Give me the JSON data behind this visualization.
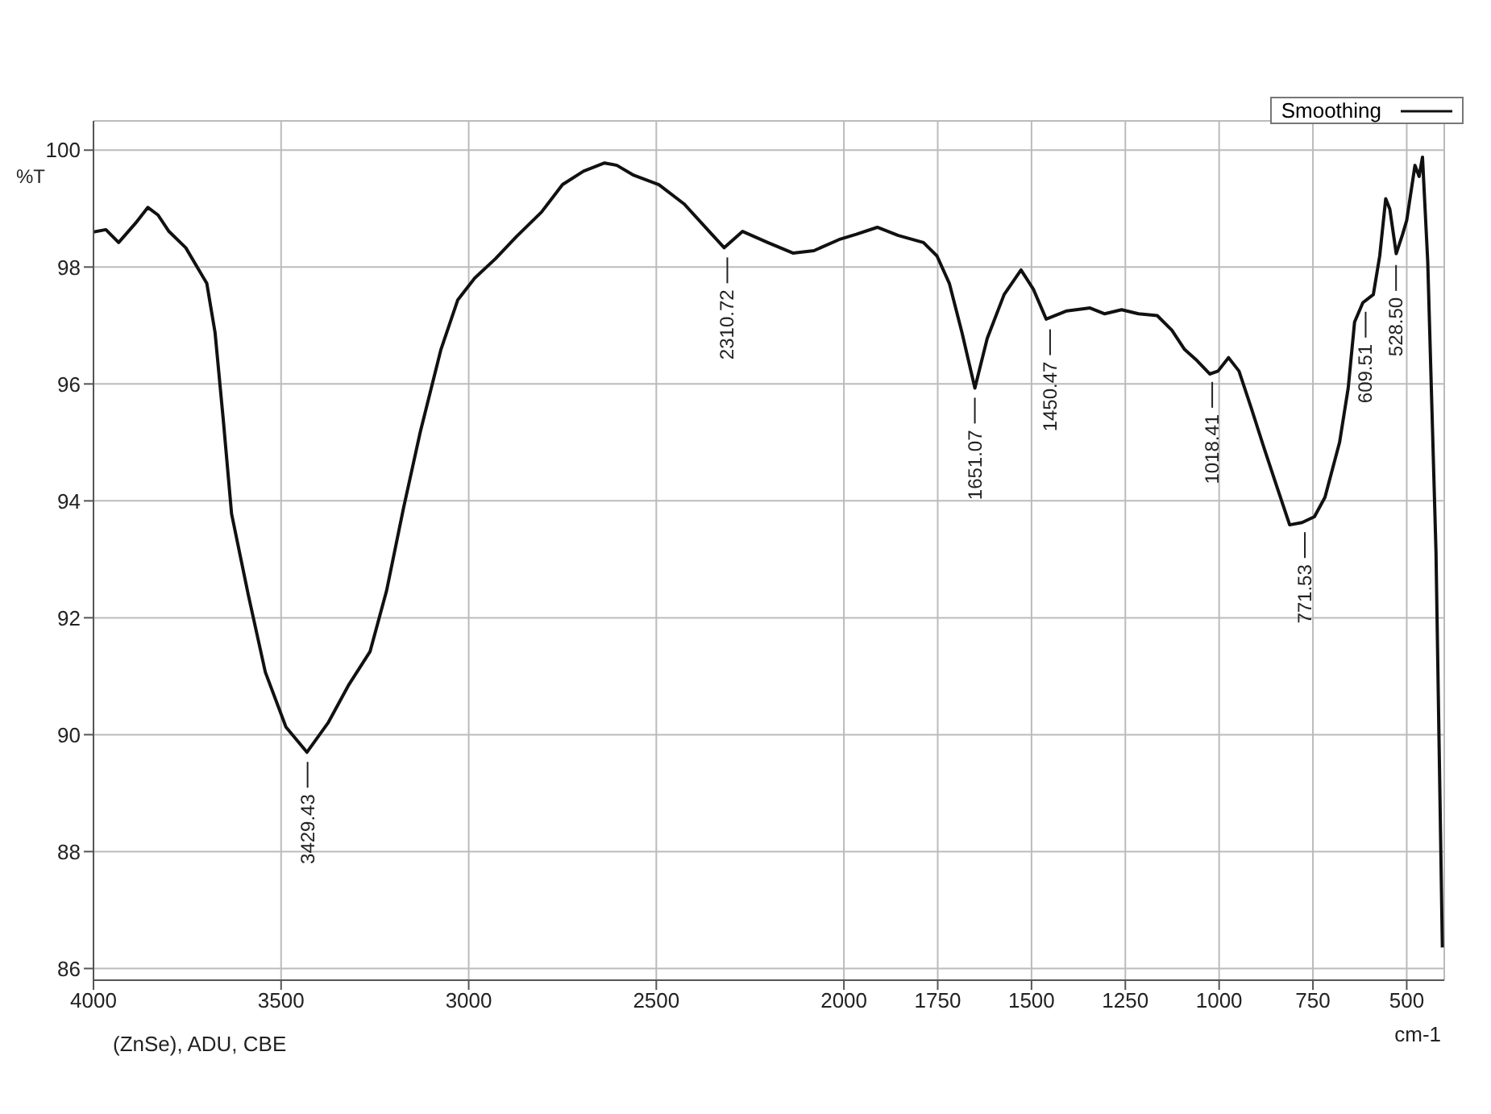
{
  "chart_data": {
    "type": "line",
    "xlabel": "cm-1",
    "ylabel": "%T",
    "series": [
      {
        "name": "Smoothing",
        "color": "#111111",
        "x": [
          4000,
          3967,
          3933,
          3888,
          3855,
          3828,
          3799,
          3754,
          3698,
          3676,
          3654,
          3632,
          3587,
          3542,
          3487,
          3431,
          3375,
          3319,
          3263,
          3219,
          3174,
          3129,
          3074,
          3029,
          2984,
          2929,
          2873,
          2806,
          2750,
          2694,
          2638,
          2605,
          2560,
          2493,
          2426,
          2359,
          2319,
          2270,
          2203,
          2136,
          2080,
          2013,
          1967,
          1911,
          1855,
          1788,
          1752,
          1719,
          1685,
          1651,
          1618,
          1573,
          1528,
          1495,
          1461,
          1406,
          1344,
          1305,
          1260,
          1215,
          1165,
          1126,
          1092,
          1059,
          1025,
          1003,
          975,
          947,
          913,
          880,
          846,
          812,
          779,
          746,
          718,
          679,
          656,
          639,
          617,
          589,
          572,
          556,
          545,
          528,
          511,
          500,
          478,
          467,
          458,
          444,
          422,
          405
        ],
        "values": [
          98.6,
          98.64,
          98.42,
          98.75,
          99.02,
          98.89,
          98.61,
          98.33,
          97.72,
          96.88,
          95.38,
          93.78,
          92.38,
          91.07,
          90.13,
          89.7,
          90.2,
          90.86,
          91.42,
          92.46,
          93.87,
          95.18,
          96.59,
          97.44,
          97.81,
          98.14,
          98.52,
          98.94,
          99.41,
          99.64,
          99.78,
          99.74,
          99.57,
          99.41,
          99.08,
          98.61,
          98.33,
          98.61,
          98.42,
          98.24,
          98.28,
          98.47,
          98.56,
          98.68,
          98.54,
          98.42,
          98.19,
          97.72,
          96.87,
          95.93,
          96.78,
          97.53,
          97.95,
          97.62,
          97.11,
          97.25,
          97.3,
          97.2,
          97.27,
          97.2,
          97.17,
          96.92,
          96.59,
          96.4,
          96.17,
          96.22,
          96.45,
          96.22,
          95.56,
          94.9,
          94.24,
          93.59,
          93.63,
          93.73,
          94.06,
          95.0,
          95.93,
          97.06,
          97.39,
          97.53,
          98.19,
          99.17,
          98.99,
          98.23,
          98.56,
          98.8,
          99.74,
          99.55,
          99.88,
          98.09,
          93.12,
          86.36
        ]
      }
    ],
    "xlim": [
      4000,
      400
    ],
    "xticks": [
      4000,
      3500,
      3000,
      2500,
      2000,
      1750,
      1500,
      1250,
      1000,
      750,
      500
    ],
    "ylim": [
      85.8,
      100.5
    ],
    "yticks": [
      86,
      88,
      90,
      92,
      94,
      96,
      98,
      100
    ],
    "grid": true,
    "legend": "top right",
    "marker": "none",
    "line_style": "solid",
    "annotations": [
      {
        "text": "3429.43",
        "x": 3429.43,
        "y": 89.7
      },
      {
        "text": "2310.72",
        "x": 2310.72,
        "y": 98.33
      },
      {
        "text": "1651.07",
        "x": 1651.07,
        "y": 95.93
      },
      {
        "text": "1450.47",
        "x": 1450.47,
        "y": 97.1
      },
      {
        "text": "1018.41",
        "x": 1018.41,
        "y": 96.2
      },
      {
        "text": "771.53",
        "x": 771.53,
        "y": 93.63
      },
      {
        "text": "609.51",
        "x": 609.51,
        "y": 97.4
      },
      {
        "text": "528.50",
        "x": 528.5,
        "y": 98.2
      },
      "(ZnSe), ADU, CBE"
    ]
  }
}
